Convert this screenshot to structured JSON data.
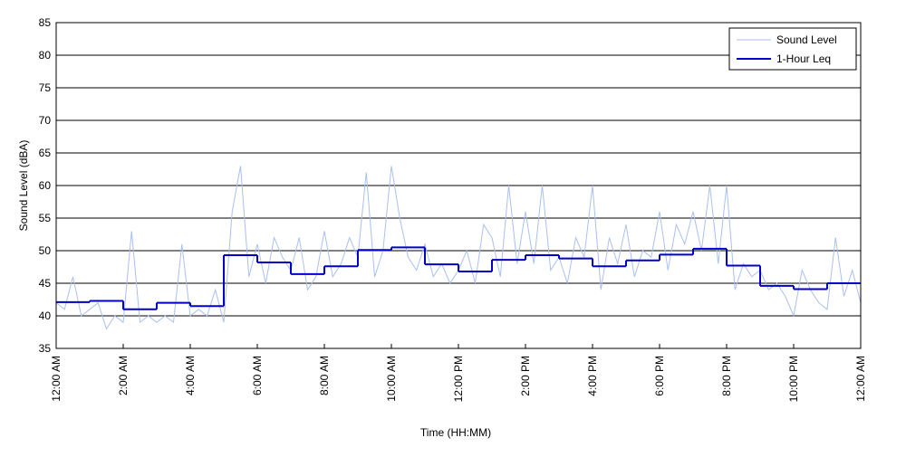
{
  "chart_data": {
    "type": "line",
    "xlabel": "Time (HH:MM)",
    "ylabel": "Sound Level (dBA)",
    "xlim": [
      0,
      24
    ],
    "ylim": [
      35,
      85
    ],
    "yticks": [
      35,
      40,
      45,
      50,
      55,
      60,
      65,
      70,
      75,
      80,
      85
    ],
    "xticks": [
      {
        "value": 0,
        "label": "12:00 AM"
      },
      {
        "value": 2,
        "label": "2:00 AM"
      },
      {
        "value": 4,
        "label": "4:00 AM"
      },
      {
        "value": 6,
        "label": "6:00 AM"
      },
      {
        "value": 8,
        "label": "8:00 AM"
      },
      {
        "value": 10,
        "label": "10:00 AM"
      },
      {
        "value": 12,
        "label": "12:00 PM"
      },
      {
        "value": 14,
        "label": "2:00 PM"
      },
      {
        "value": 16,
        "label": "4:00 PM"
      },
      {
        "value": 18,
        "label": "6:00 PM"
      },
      {
        "value": 20,
        "label": "8:00 PM"
      },
      {
        "value": 22,
        "label": "10:00 PM"
      },
      {
        "value": 24,
        "label": "12:00 AM"
      }
    ],
    "grid": true,
    "legend": "upper right",
    "series": [
      {
        "name": "Sound Level",
        "color": "#a9c1ef",
        "x": [
          0,
          0.25,
          0.5,
          0.75,
          1,
          1.25,
          1.5,
          1.75,
          2,
          2.25,
          2.5,
          2.75,
          3,
          3.25,
          3.5,
          3.75,
          4,
          4.25,
          4.5,
          4.75,
          5,
          5.25,
          5.5,
          5.75,
          6,
          6.25,
          6.5,
          6.75,
          7,
          7.25,
          7.5,
          7.75,
          8,
          8.25,
          8.5,
          8.75,
          9,
          9.25,
          9.5,
          9.75,
          10,
          10.25,
          10.5,
          10.75,
          11,
          11.25,
          11.5,
          11.75,
          12,
          12.25,
          12.5,
          12.75,
          13,
          13.25,
          13.5,
          13.75,
          14,
          14.25,
          14.5,
          14.75,
          15,
          15.25,
          15.5,
          15.75,
          16,
          16.25,
          16.5,
          16.75,
          17,
          17.25,
          17.5,
          17.75,
          18,
          18.25,
          18.5,
          18.75,
          19,
          19.25,
          19.5,
          19.75,
          20,
          20.25,
          20.5,
          20.75,
          21,
          21.25,
          21.5,
          21.75,
          22,
          22.25,
          22.5,
          22.75,
          23,
          23.25,
          23.5,
          23.75,
          24
        ],
        "values": [
          42,
          41,
          46,
          40,
          41,
          42,
          38,
          40,
          39,
          53,
          39,
          40,
          39,
          40,
          39,
          51,
          40,
          41,
          40,
          44,
          39,
          56,
          63,
          46,
          51,
          45,
          52,
          49,
          47,
          52,
          44,
          46,
          53,
          46,
          48,
          52,
          49,
          62,
          46,
          50,
          63,
          55,
          49,
          47,
          51,
          46,
          48,
          45,
          47,
          50,
          45,
          54,
          52,
          46,
          60,
          48,
          56,
          48,
          60,
          47,
          49,
          45,
          52,
          49,
          60,
          44,
          52,
          48,
          54,
          46,
          50,
          49,
          56,
          47,
          54,
          51,
          56,
          50,
          60,
          48,
          60,
          44,
          48,
          46,
          47,
          44,
          45,
          43,
          40,
          47,
          44,
          42,
          41,
          52,
          43,
          47,
          42
        ]
      },
      {
        "name": "1-Hour Leq",
        "color": "#0000c8",
        "step": "post",
        "x": [
          0,
          1,
          2,
          3,
          4,
          5,
          6,
          7,
          8,
          9,
          10,
          11,
          12,
          13,
          14,
          15,
          16,
          17,
          18,
          19,
          20,
          21,
          22,
          23
        ],
        "values": [
          42.1,
          42.3,
          41.0,
          42.0,
          41.5,
          49.3,
          48.2,
          46.4,
          47.6,
          50.1,
          50.5,
          47.9,
          46.8,
          48.6,
          49.3,
          48.8,
          47.6,
          48.5,
          49.4,
          50.3,
          47.7,
          44.6,
          44.1,
          45.0
        ]
      }
    ]
  }
}
